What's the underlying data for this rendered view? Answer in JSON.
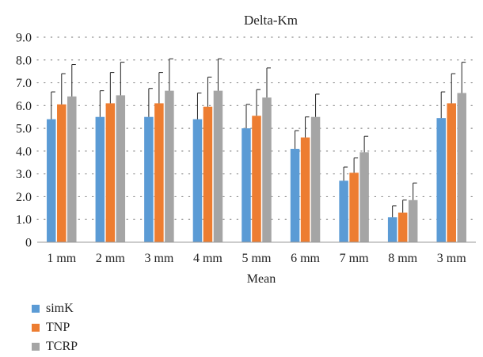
{
  "chart_data": {
    "type": "bar",
    "title": "Delta-Km",
    "xlabel": "Mean",
    "ylabel": "",
    "categories": [
      "1 mm",
      "2 mm",
      "3 mm",
      "4 mm",
      "5 mm",
      "6 mm",
      "7 mm",
      "8 mm",
      "3 mm"
    ],
    "ylim": [
      0,
      9
    ],
    "yticks": [
      "0",
      "1.0",
      "2.0",
      "3.0",
      "4.0",
      "5.0",
      "6.0",
      "7.0",
      "8.0",
      "9.0"
    ],
    "grid": "horizontal dotted",
    "legend_position": "bottom-left",
    "series": [
      {
        "name": "simK",
        "color": "#5b9bd5",
        "values": [
          5.4,
          5.5,
          5.5,
          5.4,
          5.0,
          4.1,
          2.7,
          1.1,
          5.45
        ],
        "error": [
          1.2,
          1.15,
          1.25,
          1.15,
          1.05,
          0.8,
          0.6,
          0.5,
          1.15
        ]
      },
      {
        "name": "TNP",
        "color": "#ed7d31",
        "values": [
          6.05,
          6.1,
          6.1,
          5.95,
          5.55,
          4.6,
          3.05,
          1.3,
          6.1
        ],
        "error": [
          1.35,
          1.35,
          1.35,
          1.3,
          1.15,
          0.9,
          0.65,
          0.55,
          1.3
        ]
      },
      {
        "name": "TCRP",
        "color": "#a5a5a5",
        "values": [
          6.4,
          6.45,
          6.65,
          6.65,
          6.35,
          5.5,
          3.95,
          1.85,
          6.55
        ],
        "error": [
          1.4,
          1.45,
          1.4,
          1.4,
          1.3,
          1.0,
          0.7,
          0.75,
          1.35
        ]
      }
    ]
  }
}
